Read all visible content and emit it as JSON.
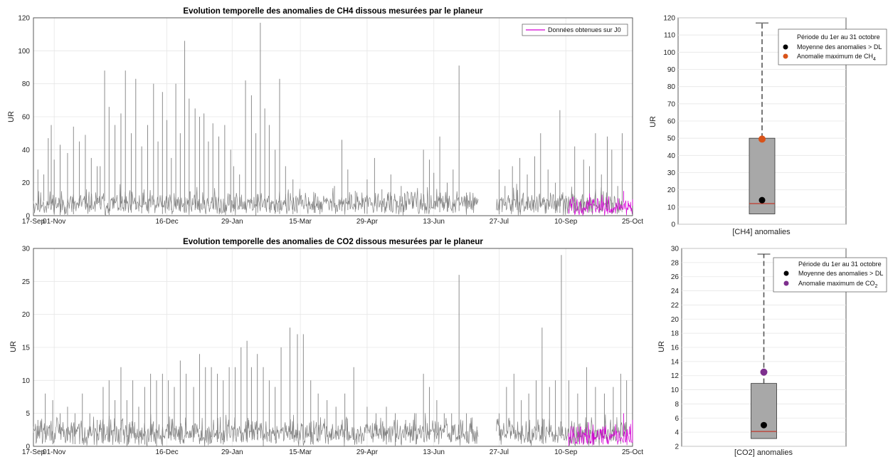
{
  "colors": {
    "series_gray": "#808080",
    "series_j0": "#d400d4",
    "grid": "#e6e6e6",
    "box_fill": "#a8a8a8",
    "median": "#c0392b",
    "mean_dot": "#000000",
    "ch4_max_dot": "#d95319",
    "co2_max_dot": "#7e2f8e"
  },
  "chart_data": [
    {
      "type": "line",
      "title": "Evolution temporelle des anomalies de CH4 dissous mesurées par le planeur",
      "xlabel": "",
      "ylabel": "UR",
      "xlim": [
        "17-Sep",
        "25-Oct"
      ],
      "ylim": [
        0,
        120
      ],
      "x_tick_labels": [
        "17-Sep",
        "01-Nov",
        "16-Dec",
        "29-Jan",
        "15-Mar",
        "29-Apr",
        "13-Jun",
        "27-Jul",
        "10-Sep",
        "25-Oct"
      ],
      "y_ticks": [
        0,
        20,
        40,
        60,
        80,
        100,
        120
      ],
      "grid": true,
      "legend": {
        "placement": "top-right",
        "entries": [
          "Données obtenues sur J0"
        ]
      },
      "series": [
        {
          "role": "history",
          "peaks": [
            [
              "17-Sep",
              2
            ],
            [
              "20-Sep",
              28
            ],
            [
              "24-Sep",
              25
            ],
            [
              "27-Sep",
              47
            ],
            [
              "29-Sep",
              55
            ],
            [
              "01-Oct",
              34
            ],
            [
              "05-Oct",
              43
            ],
            [
              "10-Oct",
              38
            ],
            [
              "14-Oct",
              54
            ],
            [
              "18-Oct",
              45
            ],
            [
              "22-Oct",
              49
            ],
            [
              "26-Oct",
              35
            ],
            [
              "30-Oct",
              30
            ],
            [
              "01-Nov",
              30
            ],
            [
              "04-Nov",
              88
            ],
            [
              "07-Nov",
              66
            ],
            [
              "11-Nov",
              55
            ],
            [
              "15-Nov",
              62
            ],
            [
              "18-Nov",
              88
            ],
            [
              "22-Nov",
              50
            ],
            [
              "25-Nov",
              83
            ],
            [
              "29-Nov",
              42
            ],
            [
              "03-Dec",
              55
            ],
            [
              "07-Dec",
              80
            ],
            [
              "10-Dec",
              45
            ],
            [
              "13-Dec",
              75
            ],
            [
              "16-Dec",
              58
            ],
            [
              "19-Dec",
              35
            ],
            [
              "22-Dec",
              80
            ],
            [
              "25-Dec",
              50
            ],
            [
              "28-Dec",
              106
            ],
            [
              "31-Dec",
              71
            ],
            [
              "03-Jan",
              65
            ],
            [
              "06-Jan",
              60
            ],
            [
              "09-Jan",
              62
            ],
            [
              "12-Jan",
              45
            ],
            [
              "15-Jan",
              56
            ],
            [
              "19-Jan",
              48
            ],
            [
              "23-Jan",
              55
            ],
            [
              "27-Jan",
              40
            ],
            [
              "29-Jan",
              30
            ],
            [
              "02-Feb",
              25
            ],
            [
              "06-Feb",
              82
            ],
            [
              "10-Feb",
              73
            ],
            [
              "13-Feb",
              50
            ],
            [
              "16-Feb",
              117
            ],
            [
              "19-Feb",
              65
            ],
            [
              "22-Feb",
              55
            ],
            [
              "26-Feb",
              40
            ],
            [
              "01-Mar",
              83
            ],
            [
              "05-Mar",
              30
            ],
            [
              "10-Mar",
              22
            ],
            [
              "15-Mar",
              8
            ],
            [
              "20-Mar",
              7
            ],
            [
              "25-Mar",
              6
            ],
            [
              "29-Mar",
              5
            ],
            [
              "02-Apr",
              10
            ],
            [
              "07-Apr",
              18
            ],
            [
              "12-Apr",
              46
            ],
            [
              "16-Apr",
              28
            ],
            [
              "21-Apr",
              15
            ],
            [
              "29-Apr",
              22
            ],
            [
              "04-May",
              35
            ],
            [
              "09-May",
              16
            ],
            [
              "15-May",
              25
            ],
            [
              "22-May",
              18
            ],
            [
              "30-May",
              12
            ],
            [
              "06-Jun",
              40
            ],
            [
              "10-Jun",
              34
            ],
            [
              "13-Jun",
              26
            ],
            [
              "17-Jun",
              48
            ],
            [
              "22-Jun",
              20
            ],
            [
              "26-Jun",
              28
            ],
            [
              "30-Jun",
              91
            ],
            [
              "05-Jul",
              14
            ],
            [
              "12-Jul",
              8
            ],
            [
              "27-Jul",
              28
            ],
            [
              "31-Jul",
              18
            ],
            [
              "05-Aug",
              30
            ],
            [
              "10-Aug",
              35
            ],
            [
              "15-Aug",
              25
            ],
            [
              "20-Aug",
              36
            ],
            [
              "24-Aug",
              50
            ],
            [
              "29-Aug",
              28
            ],
            [
              "03-Sep",
              20
            ],
            [
              "06-Sep",
              64
            ],
            [
              "10-Sep",
              12
            ],
            [
              "16-Sep",
              42
            ],
            [
              "22-Sep",
              34
            ],
            [
              "26-Sep",
              30
            ],
            [
              "30-Sep",
              50
            ],
            [
              "04-Oct",
              25
            ],
            [
              "08-Oct",
              48
            ],
            [
              "11-Oct",
              40
            ],
            [
              "15-Oct",
              18
            ],
            [
              "18-Oct",
              50
            ]
          ]
        },
        {
          "name": "Données obtenues sur J0",
          "role": "j0",
          "peaks": [
            [
              "12-Sep",
              4
            ],
            [
              "14-Sep",
              3
            ],
            [
              "16-Sep",
              3
            ],
            [
              "28-Sep",
              3
            ],
            [
              "04-Oct",
              5
            ],
            [
              "16-Oct",
              4
            ],
            [
              "19-Oct",
              15
            ],
            [
              "22-Oct",
              9
            ],
            [
              "25-Oct",
              10
            ]
          ]
        }
      ]
    },
    {
      "type": "box",
      "xlabel": "[CH4] anomalies",
      "ylabel": "UR",
      "ylim": [
        0,
        120
      ],
      "y_ticks": [
        0,
        10,
        20,
        30,
        40,
        50,
        60,
        70,
        80,
        90,
        100,
        110,
        120
      ],
      "box": {
        "q1": 6,
        "median": 12,
        "q3": 50,
        "whisker_low": 6,
        "whisker_high": 117
      },
      "mean": 14,
      "max_marker": 49.5,
      "legend": {
        "placement": "top-right",
        "title": "Période du 1er au 31 octobre",
        "mean_label": "Moyenne des anomalies > DL",
        "max_label_base": "Anomalie maximum de CH",
        "max_label_sub": "4"
      }
    },
    {
      "type": "line",
      "title": "Evolution temporelle des anomalies de CO2 dissous mesurées par le planeur",
      "xlabel": "",
      "ylabel": "UR",
      "xlim": [
        "17-Sep",
        "25-Oct"
      ],
      "ylim": [
        0,
        30
      ],
      "x_tick_labels": [
        "17-Sep",
        "01-Nov",
        "16-Dec",
        "29-Jan",
        "15-Mar",
        "29-Apr",
        "13-Jun",
        "27-Jul",
        "10-Sep",
        "25-Oct"
      ],
      "y_ticks": [
        0,
        5,
        10,
        15,
        20,
        25,
        30
      ],
      "grid": true,
      "series": [
        {
          "role": "history",
          "peaks": [
            [
              "17-Sep",
              3
            ],
            [
              "20-Sep",
              4
            ],
            [
              "25-Sep",
              8
            ],
            [
              "30-Sep",
              7
            ],
            [
              "05-Oct",
              5
            ],
            [
              "10-Oct",
              6
            ],
            [
              "15-Oct",
              5
            ],
            [
              "20-Oct",
              8
            ],
            [
              "25-Oct",
              5
            ],
            [
              "30-Oct",
              4
            ],
            [
              "03-Nov",
              9
            ],
            [
              "07-Nov",
              10
            ],
            [
              "11-Nov",
              7
            ],
            [
              "15-Nov",
              12
            ],
            [
              "19-Nov",
              7
            ],
            [
              "23-Nov",
              10
            ],
            [
              "27-Nov",
              6
            ],
            [
              "01-Dec",
              9
            ],
            [
              "05-Dec",
              11
            ],
            [
              "09-Dec",
              10
            ],
            [
              "13-Dec",
              11
            ],
            [
              "17-Dec",
              10
            ],
            [
              "21-Dec",
              9
            ],
            [
              "25-Dec",
              13
            ],
            [
              "29-Dec",
              11
            ],
            [
              "02-Jan",
              9
            ],
            [
              "06-Jan",
              14
            ],
            [
              "10-Jan",
              12
            ],
            [
              "14-Jan",
              12
            ],
            [
              "18-Jan",
              11
            ],
            [
              "22-Jan",
              10
            ],
            [
              "26-Jan",
              12
            ],
            [
              "30-Jan",
              12
            ],
            [
              "03-Feb",
              15
            ],
            [
              "07-Feb",
              16
            ],
            [
              "10-Feb",
              12
            ],
            [
              "14-Feb",
              14
            ],
            [
              "18-Feb",
              12
            ],
            [
              "22-Feb",
              10
            ],
            [
              "26-Feb",
              9
            ],
            [
              "02-Mar",
              15
            ],
            [
              "08-Mar",
              18
            ],
            [
              "13-Mar",
              17
            ],
            [
              "17-Mar",
              17
            ],
            [
              "22-Mar",
              10
            ],
            [
              "27-Mar",
              8
            ],
            [
              "02-Apr",
              7
            ],
            [
              "08-Apr",
              6
            ],
            [
              "14-Apr",
              8
            ],
            [
              "20-Apr",
              12
            ],
            [
              "29-Apr",
              6
            ],
            [
              "05-May",
              5
            ],
            [
              "12-May",
              6
            ],
            [
              "18-May",
              5
            ],
            [
              "25-May",
              4
            ],
            [
              "01-Jun",
              5
            ],
            [
              "06-Jun",
              11
            ],
            [
              "10-Jun",
              9
            ],
            [
              "15-Jun",
              7
            ],
            [
              "20-Jun",
              5
            ],
            [
              "25-Jun",
              5
            ],
            [
              "30-Jun",
              26
            ],
            [
              "05-Jul",
              5
            ],
            [
              "12-Jul",
              3
            ],
            [
              "27-Jul",
              5
            ],
            [
              "01-Aug",
              9
            ],
            [
              "06-Aug",
              11
            ],
            [
              "11-Aug",
              7
            ],
            [
              "16-Aug",
              8
            ],
            [
              "21-Aug",
              10
            ],
            [
              "25-Aug",
              18
            ],
            [
              "30-Aug",
              9
            ],
            [
              "03-Sep",
              10
            ],
            [
              "07-Sep",
              29
            ],
            [
              "12-Sep",
              10
            ],
            [
              "18-Sep",
              8
            ],
            [
              "24-Sep",
              12
            ],
            [
              "30-Sep",
              9
            ],
            [
              "06-Oct",
              8
            ],
            [
              "12-Oct",
              9
            ],
            [
              "17-Oct",
              11
            ],
            [
              "21-Oct",
              10
            ]
          ]
        },
        {
          "name": "Données obtenues sur J0",
          "role": "j0",
          "peaks": [
            [
              "12-Sep",
              2
            ],
            [
              "15-Sep",
              3
            ],
            [
              "18-Sep",
              3
            ],
            [
              "29-Sep",
              2
            ],
            [
              "05-Oct",
              3
            ],
            [
              "14-Oct",
              2
            ],
            [
              "19-Oct",
              5
            ],
            [
              "23-Oct",
              3
            ],
            [
              "25-Oct",
              4
            ]
          ]
        }
      ]
    },
    {
      "type": "box",
      "xlabel": "[CO2] anomalies",
      "ylabel": "UR",
      "ylim": [
        2,
        30
      ],
      "y_ticks": [
        2,
        4,
        6,
        8,
        10,
        12,
        14,
        16,
        18,
        20,
        22,
        24,
        26,
        28,
        30
      ],
      "box": {
        "q1": 3.1,
        "median": 4.1,
        "q3": 10.9,
        "whisker_low": 3.1,
        "whisker_high": 29.2
      },
      "mean": 5,
      "max_marker": 12.5,
      "legend": {
        "placement": "top-right",
        "title": "Période du 1er au 31 octobre",
        "mean_label": "Moyenne des anomalies > DL",
        "max_label_base": "Anomalie maximum de CO",
        "max_label_sub": "2"
      }
    }
  ]
}
